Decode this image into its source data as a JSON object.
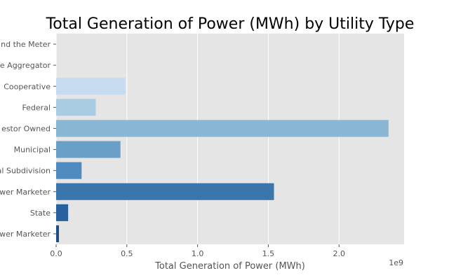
{
  "chart_data": {
    "type": "bar",
    "orientation": "horizontal",
    "title": "Total Generation of Power (MWh) by Utility Type",
    "xlabel": "Total Generation of Power (MWh)",
    "ylabel": "",
    "x_offset_label": "1e9",
    "xlim": [
      0,
      2.46
    ],
    "x_ticks": [
      0.0,
      0.5,
      1.0,
      1.5,
      2.0
    ],
    "x_tick_labels": [
      "0.0",
      "0.5",
      "1.0",
      "1.5",
      "2.0"
    ],
    "grid": true,
    "legend": "none",
    "categories": [
      "Behind the Meter",
      "Retail Power Aggregator",
      "Cooperative",
      "Federal",
      "Investor Owned",
      "Municipal",
      "Political Subdivision",
      "Retail Power Marketer",
      "State",
      "Wholesale Power Marketer"
    ],
    "category_labels_visible": [
      "nd the Meter",
      "e Aggregator",
      "Cooperative",
      "Federal",
      "estor Owned",
      "Municipal",
      "al Subdivision",
      "wer Marketer",
      "State",
      "wer Marketer"
    ],
    "values": [
      0.0,
      0.0,
      0.49,
      0.28,
      2.35,
      0.455,
      0.18,
      1.54,
      0.085,
      0.02
    ],
    "colors": [
      "#dbe9f6",
      "#d0e1f2",
      "#c6dbef",
      "#a9cce3",
      "#89b6d2",
      "#6aa0c7",
      "#4f8bbf",
      "#3a75ab",
      "#28619f",
      "#1f4e8a"
    ],
    "background": "#e5e5e5",
    "grid_color": "#ffffff"
  }
}
